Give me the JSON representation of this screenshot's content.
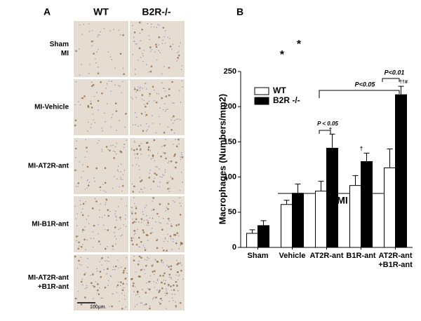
{
  "panel_a": {
    "label": "A",
    "columns": [
      "WT",
      "B2R-/-"
    ],
    "rows": [
      "Sham MI",
      "MI-Vehicle",
      "MI-AT2R-ant",
      "MI-B1R-ant",
      "MI-AT2R-ant +B1R-ant"
    ],
    "scale_bar": "100μm"
  },
  "chart_data": {
    "type": "bar",
    "panel": "B",
    "ylabel": "Macrophages (Numbers/mm2)",
    "xlabel": "MI",
    "categories": [
      "Sham",
      "Vehicle",
      "AT2R-ant",
      "B1R-ant",
      "AT2R-ant +B1R-ant"
    ],
    "series": [
      {
        "name": "WT",
        "color": "#ffffff",
        "values": [
          20,
          61,
          80,
          88,
          113
        ],
        "errors": [
          5,
          6,
          14,
          14,
          27
        ]
      },
      {
        "name": "B2R -/-",
        "color": "#000000",
        "values": [
          31,
          77,
          141,
          122,
          217
        ],
        "errors": [
          7,
          13,
          20,
          12,
          12
        ]
      }
    ],
    "ylim": [
      0,
      250
    ],
    "yticks": [
      0,
      50,
      100,
      150,
      200,
      250
    ],
    "legend": "upper left",
    "annotations": [
      "*",
      "*",
      "†",
      "†",
      "††#",
      "P < 0.05",
      "P<0.05",
      "P<0.01"
    ]
  }
}
